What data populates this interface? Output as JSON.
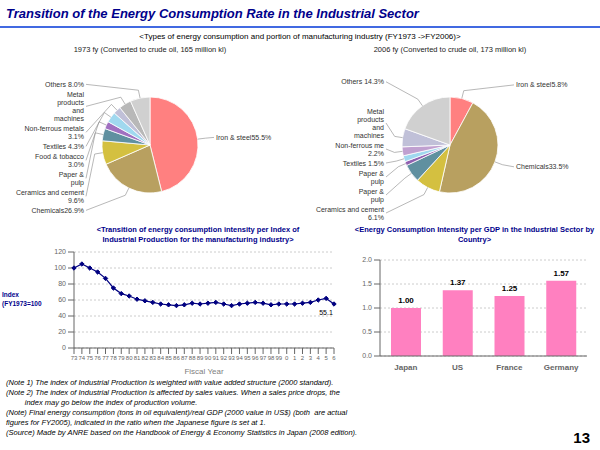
{
  "title": "Transition of the Energy Consumption Rate in the Industrial Sector",
  "subtitle": "<Types of energy consumption and portion of manufacturing industry (FY1973 ->FY2006)>",
  "notes": [
    "(Note 1) The index of Industrial Production is weighted with value added structure (2000 standard).",
    "(Note 2) The index of Industrial Production is affected by sales values. When a sales price drops, the\n         index may go below the index of production volume.",
    "(Note) Final energy consumption (tons in oil equivalent)/real GDP (2000 value in US$) (both  are actual\nfigures for FY2005), indicated in the ratio when the Japanese figure is set at 1.\n(Source) Made by ANRE based on the Handbook of Energy & Economy Statistics in Japan (2008 edition)."
  ],
  "page_number": "13",
  "chart_data": [
    {
      "type": "pie",
      "title": "1973 fy (Converted to crude oil, 165 million kl)",
      "categories": [
        "Iron & steel55.5%",
        "Chemicals26.9%",
        "Ceramics and cement\n9.6%",
        "Paper &\npulp",
        "Food & tobacco\n3.0%",
        "Textiles 4.3%",
        "Non-ferrous metals\n3.1%",
        "Metal\nproducts\nand\nmachines",
        "Others 8.0%"
      ],
      "values": [
        55.5,
        26.9,
        9.6,
        5.0,
        3.0,
        4.3,
        3.1,
        5.0,
        8.0
      ],
      "colors": [
        "#ff8080",
        "#b8a060",
        "#d4c040",
        "#6090a0",
        "#a070c0",
        "#a0d8ef",
        "#c0c0d8",
        "#b8b8b8",
        "#d0d0d0"
      ]
    },
    {
      "type": "pie",
      "title": "2006 fy (Converted to crude oil, 173 million kl)",
      "categories": [
        "Iron & steel5.8%",
        "Chemicals33.5%",
        "Ceramics and cement\n6.1%",
        "Paper &\npulp",
        "Paper &\npulp",
        "Textiles 1.5%",
        "Non-ferrous me\n2.2%",
        "Metal\nproducts\nand\nmachines",
        "Others 14.3%"
      ],
      "values": [
        5.8,
        33.5,
        6.1,
        4.5,
        1.0,
        1.5,
        2.2,
        4.5,
        14.3
      ],
      "colors": [
        "#ff8080",
        "#b8a060",
        "#d4c040",
        "#6090a0",
        "#9060b0",
        "#a0d8ef",
        "#c0a0d0",
        "#c0c0d8",
        "#d0d0d0"
      ]
    },
    {
      "type": "line",
      "title": "<Transition of energy consumption intensity per Index of\nIndustrial Production for the manufacturing industry>",
      "xlabel": "Fiscal Year",
      "ylabel": "Index\n(FY1973=100",
      "categories": [
        "73",
        "74",
        "75",
        "76",
        "77",
        "78",
        "79",
        "80",
        "81",
        "82",
        "83",
        "84",
        "85",
        "86",
        "87",
        "88",
        "89",
        "90",
        "91",
        "92",
        "93",
        "94",
        "95",
        "96",
        "97",
        "98",
        "99",
        "0",
        "1",
        "2",
        "3",
        "4",
        "5",
        "6"
      ],
      "values": [
        100,
        105,
        100,
        95,
        87,
        75,
        68,
        65,
        61,
        59,
        57,
        55,
        54,
        53,
        54,
        56,
        55,
        56,
        57,
        55,
        53,
        55,
        56,
        57,
        56,
        54,
        55,
        55,
        55,
        56,
        57,
        60,
        62,
        55
      ],
      "color": "navy",
      "marker": "diamond",
      "ylim": [
        0,
        120
      ],
      "yticks": [
        0,
        20,
        40,
        60,
        80,
        100,
        120
      ],
      "grid": true,
      "annotations": [
        "55.1"
      ]
    },
    {
      "type": "bar",
      "title": "<Energy Consumption Intensity per GDP in the Industrial Sector by Country>",
      "categories": [
        "Japan",
        "US",
        "France",
        "Germany"
      ],
      "values": [
        1.0,
        1.37,
        1.25,
        1.57
      ],
      "value_labels": [
        "1.00",
        "1.37",
        "1.25",
        "1.57"
      ],
      "data_labels": true,
      "color": "#ff80c0",
      "ylim": [
        0,
        2
      ],
      "yticks": [
        {
          "value": 0,
          "label": "0.0"
        },
        0.5,
        {
          "value": 1,
          "label": "1.0"
        },
        1.5,
        {
          "value": 2,
          "label": "2.0"
        }
      ],
      "grid": true
    }
  ]
}
